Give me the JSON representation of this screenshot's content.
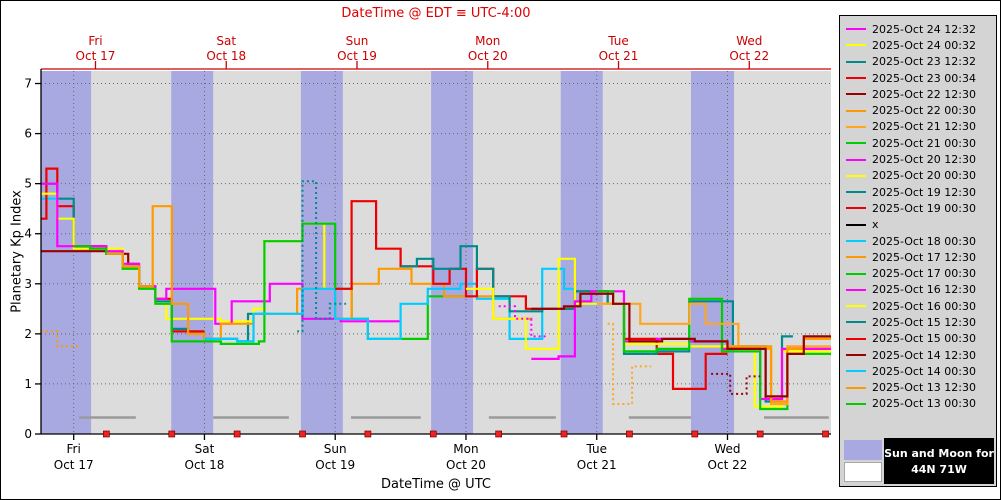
{
  "colors": {
    "title_red": "#dd0000",
    "axis_red": "#cc0000",
    "night_band": "#a9a9e2",
    "day_band": "#dcdcdc",
    "legend_bg": "#d4d4d4",
    "moon_bar": "#9a9a9a",
    "grid": "#666666"
  },
  "sun_moon_key": {
    "line1": "Sun and Moon for",
    "line2": "44N 71W",
    "night_color": "#a9a9e2",
    "day_color": "#ffffff"
  },
  "chart_data": {
    "type": "line",
    "step": "after",
    "title": "DateTime @ EDT ≡ UTC-4:00",
    "xlabel": "DateTime @ UTC",
    "ylabel": "Planetary Kp Index",
    "x_unit": "hours since 2025-Oct-16 18:00 UTC",
    "xlim": [
      0,
      145
    ],
    "ylim": [
      0,
      7.25
    ],
    "yticks": [
      0,
      1,
      2,
      3,
      4,
      5,
      6,
      7
    ],
    "utc_day_ticks": [
      {
        "t": 6,
        "day": "Fri",
        "date": "Oct 17"
      },
      {
        "t": 30,
        "day": "Sat",
        "date": "Oct 18"
      },
      {
        "t": 54,
        "day": "Sun",
        "date": "Oct 19"
      },
      {
        "t": 78,
        "day": "Mon",
        "date": "Oct 20"
      },
      {
        "t": 102,
        "day": "Tue",
        "date": "Oct 21"
      },
      {
        "t": 126,
        "day": "Wed",
        "date": "Oct 22"
      }
    ],
    "edt_day_ticks": [
      {
        "t": 10,
        "day": "Fri",
        "date": "Oct 17"
      },
      {
        "t": 34,
        "day": "Sat",
        "date": "Oct 18"
      },
      {
        "t": 58,
        "day": "Sun",
        "date": "Oct 19"
      },
      {
        "t": 82,
        "day": "Mon",
        "date": "Oct 20"
      },
      {
        "t": 106,
        "day": "Tue",
        "date": "Oct 21"
      },
      {
        "t": 130,
        "day": "Wed",
        "date": "Oct 22"
      }
    ],
    "night_bands": [
      [
        0,
        9.2
      ],
      [
        23.9,
        31.6
      ],
      [
        47.7,
        55.4
      ],
      [
        71.6,
        79.3
      ],
      [
        95.4,
        103.1
      ],
      [
        119.3,
        127.2
      ]
    ],
    "moon_bars": [
      [
        7,
        17.4
      ],
      [
        31.6,
        45.5
      ],
      [
        56.9,
        69.7
      ],
      [
        82.2,
        94.5
      ],
      [
        107.9,
        119.3
      ],
      [
        132.7,
        144.6
      ]
    ],
    "moon_bar_kp": 0.33,
    "issue_markers_t": [
      12,
      24,
      36,
      48,
      60,
      72,
      84,
      96,
      108,
      120,
      132,
      144
    ],
    "series": [
      {
        "name": "2025-Oct 24 12:32",
        "color": "#ff00ff",
        "points": []
      },
      {
        "name": "2025-Oct 24 00:32",
        "color": "#ffff00",
        "points": []
      },
      {
        "name": "2025-Oct 23 12:32",
        "color": "#008b8b",
        "points": []
      },
      {
        "name": "2025-Oct 23 00:34",
        "color": "#ee0000",
        "points": []
      },
      {
        "name": "2025-Oct 22 12:30",
        "color": "#990000",
        "points": [
          [
            90,
            2.5
          ],
          [
            96,
            2.55
          ],
          [
            99,
            2.8
          ],
          [
            105,
            2.6
          ],
          [
            108,
            1.85
          ],
          [
            114,
            1.9
          ],
          [
            120,
            1.85
          ],
          [
            126,
            1.7
          ],
          [
            132,
            1.7
          ],
          [
            133,
            0.75
          ],
          [
            136,
            0.75
          ],
          [
            137,
            1.6
          ],
          [
            140,
            1.95
          ],
          [
            145,
            1.95
          ]
        ]
      },
      {
        "name": "2025-Oct 22 00:30",
        "color": "#ff9900",
        "points": [
          [
            126,
            1.75
          ],
          [
            133,
            1.75
          ],
          [
            134,
            0.65
          ],
          [
            136,
            0.65
          ],
          [
            137,
            1.7
          ],
          [
            140,
            1.9
          ],
          [
            145,
            1.9
          ]
        ]
      },
      {
        "name": "2025-Oct 21 12:30",
        "color": "#ffa520",
        "points": [
          [
            102,
            2.6
          ],
          [
            108,
            2.6
          ],
          [
            110,
            2.2
          ],
          [
            117,
            2.2
          ],
          [
            119,
            2.6
          ],
          [
            122,
            2.2
          ],
          [
            126,
            2.2
          ],
          [
            128,
            1.7
          ],
          [
            133,
            1.7
          ],
          [
            134,
            0.6
          ],
          [
            136,
            0.6
          ],
          [
            137,
            1.75
          ],
          [
            145,
            1.75
          ]
        ]
      },
      {
        "name": "2025-Oct 21 00:30",
        "color": "#00cc00",
        "points": [
          [
            102,
            2.85
          ],
          [
            105,
            2.6
          ],
          [
            107,
            1.65
          ],
          [
            113,
            1.7
          ],
          [
            119,
            2.7
          ],
          [
            125,
            1.65
          ],
          [
            131,
            1.65
          ],
          [
            132,
            0.5
          ],
          [
            136,
            0.5
          ],
          [
            137,
            1.6
          ],
          [
            145,
            1.6
          ]
        ]
      },
      {
        "name": "2025-Oct 20 12:30",
        "color": "#ff00ff",
        "points": [
          [
            90,
            1.5
          ],
          [
            95,
            1.55
          ],
          [
            98,
            2.65
          ],
          [
            101,
            2.85
          ],
          [
            107,
            1.85
          ],
          [
            113,
            1.9
          ],
          [
            119,
            1.85
          ],
          [
            125,
            1.7
          ],
          [
            131,
            1.7
          ],
          [
            132,
            0.7
          ],
          [
            135,
            0.7
          ],
          [
            136,
            1.7
          ],
          [
            145,
            1.7
          ]
        ]
      },
      {
        "name": "2025-Oct 20 00:30",
        "color": "#ffff00",
        "points": [
          [
            78,
            2.9
          ],
          [
            83,
            2.3
          ],
          [
            89,
            1.7
          ],
          [
            95,
            3.5
          ],
          [
            98,
            2.6
          ],
          [
            107,
            1.8
          ],
          [
            119,
            1.75
          ],
          [
            128,
            1.7
          ],
          [
            131,
            0.55
          ],
          [
            135,
            0.55
          ],
          [
            136,
            1.65
          ],
          [
            145,
            1.65
          ]
        ]
      },
      {
        "name": "2025-Oct 19 12:30",
        "color": "#008b8b",
        "points": [
          [
            66,
            3.35
          ],
          [
            69,
            3.5
          ],
          [
            72,
            3.3
          ],
          [
            77,
            3.75
          ],
          [
            80,
            3.3
          ],
          [
            83,
            2.75
          ],
          [
            86,
            2.45
          ],
          [
            92,
            2.5
          ],
          [
            98,
            2.85
          ],
          [
            104,
            2.6
          ],
          [
            107,
            1.6
          ],
          [
            113,
            1.65
          ],
          [
            119,
            2.65
          ],
          [
            127,
            1.75
          ],
          [
            132,
            1.75
          ],
          [
            133,
            0.65
          ],
          [
            135,
            0.65
          ],
          [
            136,
            1.95
          ],
          [
            138,
            1.95
          ]
        ]
      },
      {
        "name": "2025-Oct 19 00:30",
        "color": "#ee0000",
        "points": [
          [
            54,
            2.9
          ],
          [
            57,
            4.65
          ],
          [
            61.5,
            3.7
          ],
          [
            66,
            3.35
          ],
          [
            72,
            3.0
          ],
          [
            75,
            3.3
          ],
          [
            78,
            2.75
          ],
          [
            80,
            3.3
          ],
          [
            83,
            2.75
          ],
          [
            89,
            2.5
          ],
          [
            98,
            2.85
          ],
          [
            104,
            2.6
          ],
          [
            107,
            1.9
          ],
          [
            113,
            1.6
          ],
          [
            116,
            0.9
          ],
          [
            122,
            1.6
          ],
          [
            126,
            1.6
          ]
        ]
      },
      {
        "name": "x",
        "color": "#000000",
        "points": []
      },
      {
        "name": "2025-Oct 18 00:30",
        "color": "#00ccff",
        "points": [
          [
            30,
            1.9
          ],
          [
            36,
            1.85
          ],
          [
            39,
            2.4
          ],
          [
            45,
            2.4
          ],
          [
            48,
            2.9
          ],
          [
            54,
            2.3
          ],
          [
            60,
            1.9
          ],
          [
            66,
            2.6
          ],
          [
            71,
            2.9
          ],
          [
            77,
            3.0
          ],
          [
            80,
            2.7
          ],
          [
            86,
            1.9
          ],
          [
            92,
            3.3
          ],
          [
            96,
            2.9
          ],
          [
            98,
            2.6
          ],
          [
            102,
            2.6
          ]
        ]
      },
      {
        "name": "2025-Oct 17 12:30",
        "color": "#ff9900",
        "points": [
          [
            12,
            3.6
          ],
          [
            15,
            3.35
          ],
          [
            18,
            2.95
          ],
          [
            20.5,
            4.55
          ],
          [
            24,
            2.6
          ],
          [
            27,
            2.0
          ],
          [
            30,
            1.9
          ],
          [
            33,
            2.2
          ],
          [
            39,
            2.4
          ],
          [
            47,
            2.9
          ],
          [
            54,
            2.3
          ],
          [
            57,
            3.0
          ],
          [
            62,
            3.3
          ],
          [
            68,
            3.0
          ],
          [
            74,
            2.75
          ],
          [
            83,
            2.3
          ],
          [
            90,
            2.3
          ]
        ]
      },
      {
        "name": "2025-Oct 17 00:30",
        "color": "#00cc00",
        "points": [
          [
            6,
            3.75
          ],
          [
            9,
            3.7
          ],
          [
            12,
            3.6
          ],
          [
            15,
            3.3
          ],
          [
            18,
            2.9
          ],
          [
            21,
            2.6
          ],
          [
            24,
            1.85
          ],
          [
            33,
            1.8
          ],
          [
            40,
            1.85
          ],
          [
            41,
            3.85
          ],
          [
            48,
            4.2
          ],
          [
            54,
            2.9
          ],
          [
            57,
            2.3
          ],
          [
            60,
            1.9
          ],
          [
            69,
            1.9
          ],
          [
            71,
            2.75
          ],
          [
            78,
            2.75
          ]
        ]
      },
      {
        "name": "2025-Oct 16 12:30",
        "color": "#ff00ff",
        "points": [
          [
            0,
            5.0
          ],
          [
            3,
            3.75
          ],
          [
            12,
            3.65
          ],
          [
            15,
            3.4
          ],
          [
            18,
            2.95
          ],
          [
            21,
            2.7
          ],
          [
            23,
            2.9
          ],
          [
            31,
            2.9
          ],
          [
            32,
            2.2
          ],
          [
            35,
            2.65
          ],
          [
            41,
            2.65
          ],
          [
            42,
            3.0
          ],
          [
            47,
            3.0
          ],
          [
            48,
            2.3
          ],
          [
            55,
            2.25
          ],
          [
            66,
            2.25
          ]
        ]
      },
      {
        "name": "2025-Oct 16 00:30",
        "color": "#ffff00",
        "points": [
          [
            0,
            4.8
          ],
          [
            3,
            4.3
          ],
          [
            6,
            3.7
          ],
          [
            15,
            3.3
          ],
          [
            18,
            2.9
          ],
          [
            21,
            2.6
          ],
          [
            23,
            2.3
          ],
          [
            33,
            2.25
          ],
          [
            39,
            2.5
          ],
          [
            41,
            3.85
          ],
          [
            48,
            4.2
          ],
          [
            52,
            2.9
          ],
          [
            54,
            2.9
          ]
        ]
      },
      {
        "name": "2025-Oct 15 12:30",
        "color": "#008b8b",
        "points": [
          [
            0,
            5.0
          ],
          [
            3,
            4.7
          ],
          [
            6,
            3.7
          ],
          [
            12,
            3.6
          ],
          [
            15,
            3.35
          ],
          [
            18,
            2.9
          ],
          [
            21,
            2.65
          ],
          [
            24,
            2.1
          ],
          [
            27,
            2.0
          ],
          [
            30,
            1.9
          ],
          [
            36,
            1.85
          ],
          [
            38,
            2.4
          ],
          [
            42,
            2.4
          ]
        ]
      },
      {
        "name": "2025-Oct 15 00:30",
        "color": "#ee0000",
        "points": [
          [
            0,
            4.3
          ],
          [
            1,
            5.3
          ],
          [
            3,
            4.55
          ],
          [
            6,
            3.75
          ],
          [
            12,
            3.6
          ],
          [
            15,
            3.3
          ],
          [
            18,
            2.95
          ],
          [
            21,
            2.7
          ],
          [
            24,
            2.05
          ],
          [
            30,
            2.05
          ]
        ]
      },
      {
        "name": "2025-Oct 14 12:30",
        "color": "#990000",
        "points": [
          [
            0,
            3.65
          ],
          [
            6,
            3.65
          ],
          [
            12,
            3.6
          ],
          [
            16,
            3.4
          ],
          [
            18,
            3.4
          ]
        ]
      },
      {
        "name": "2025-Oct 14 00:30",
        "color": "#00ccff",
        "points": [
          [
            0,
            4.7
          ],
          [
            3,
            4.3
          ],
          [
            6,
            4.3
          ]
        ]
      },
      {
        "name": "2025-Oct 13 12:30",
        "color": "#ff9900",
        "points": []
      },
      {
        "name": "2025-Oct 13 00:30",
        "color": "#00cc00",
        "points": []
      }
    ],
    "dotted_segments": [
      {
        "color": "#ff9900",
        "points": [
          [
            0,
            2.05
          ],
          [
            3,
            1.75
          ],
          [
            7,
            1.75
          ]
        ]
      },
      {
        "color": "#008b8b",
        "points": [
          [
            47,
            2.05
          ],
          [
            48,
            5.05
          ],
          [
            50.5,
            2.3
          ],
          [
            53,
            2.6
          ],
          [
            56,
            2.6
          ]
        ]
      },
      {
        "color": "#ff00ff",
        "points": [
          [
            84,
            2.55
          ],
          [
            87,
            2.3
          ],
          [
            90,
            1.95
          ],
          [
            93,
            1.95
          ]
        ]
      },
      {
        "color": "#ffa520",
        "points": [
          [
            104,
            2.2
          ],
          [
            105,
            0.6
          ],
          [
            108.5,
            1.35
          ],
          [
            112,
            1.35
          ]
        ]
      },
      {
        "color": "#990000",
        "points": [
          [
            123,
            1.2
          ],
          [
            126.5,
            0.8
          ],
          [
            129.5,
            1.15
          ],
          [
            132,
            1.15
          ]
        ]
      }
    ]
  }
}
